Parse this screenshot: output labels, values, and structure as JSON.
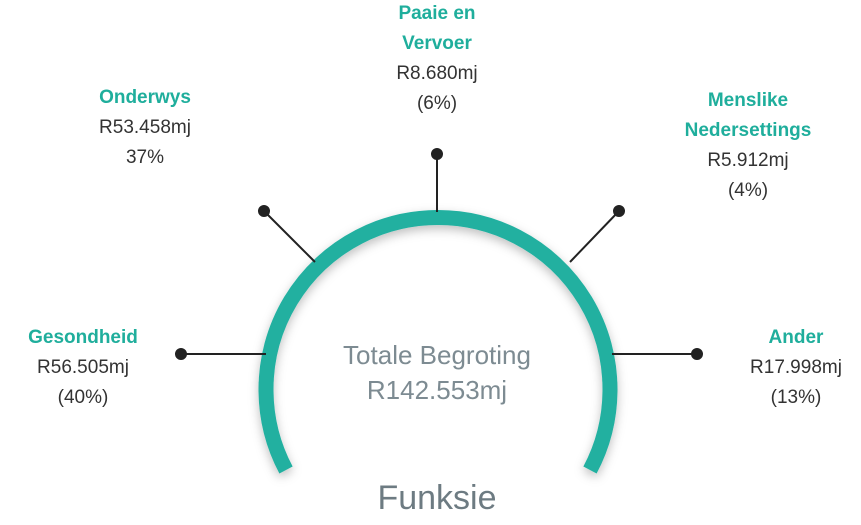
{
  "center": {
    "label": "Totale Begroting",
    "total": "R142.553mj"
  },
  "footer": "Funksie",
  "items": [
    {
      "name": [
        "Gesondheid"
      ],
      "amount": "R56.505mj",
      "share": "(40%)"
    },
    {
      "name": [
        "Onderwys"
      ],
      "amount": "R53.458mj",
      "share": "37%"
    },
    {
      "name": [
        "Paaie en",
        "Vervoer"
      ],
      "amount": "R8.680mj",
      "share": "(6%)"
    },
    {
      "name": [
        "Menslike",
        "Nedersettings"
      ],
      "amount": "R5.912mj",
      "share": "(4%)"
    },
    {
      "name": [
        "Ander"
      ],
      "amount": "R17.998mj",
      "share": "(13%)"
    }
  ]
}
